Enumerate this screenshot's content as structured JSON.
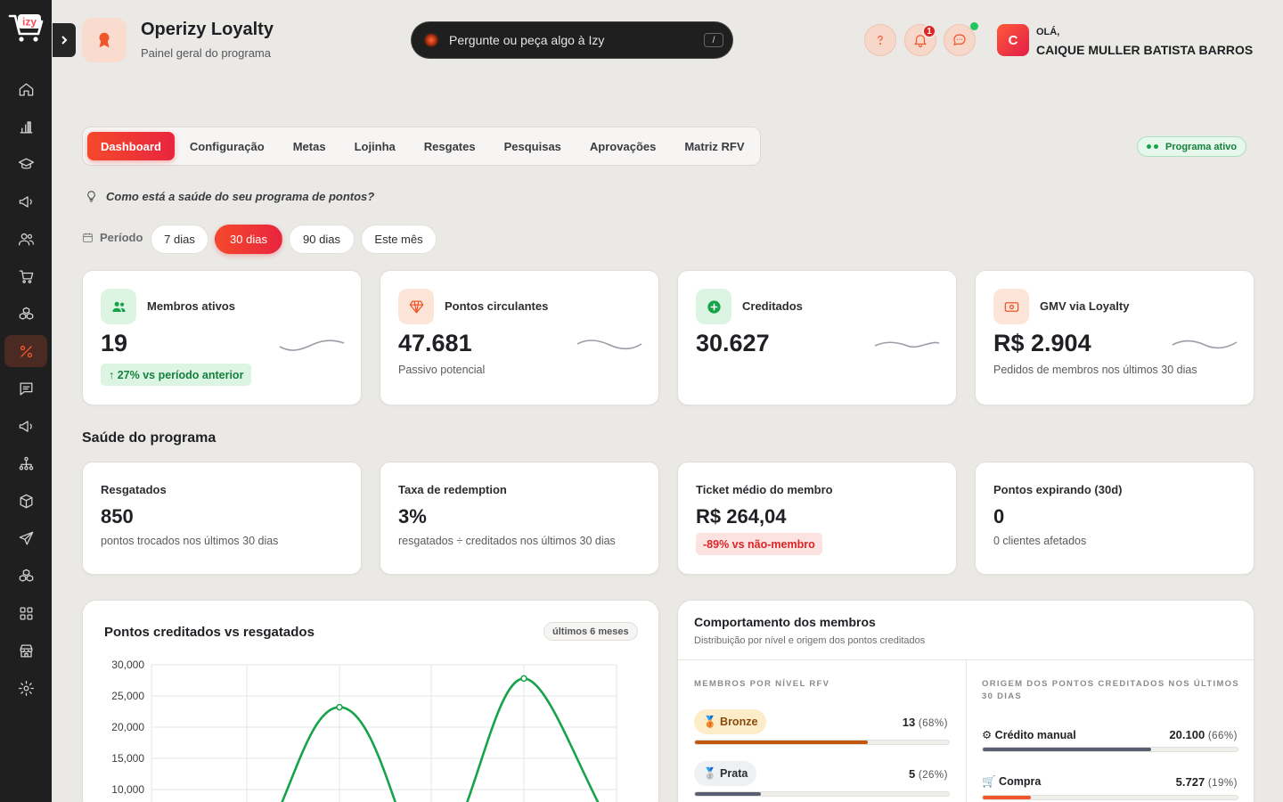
{
  "app": {
    "logo_text": "izy"
  },
  "sidebar": {
    "items": [
      {
        "name": "home"
      },
      {
        "name": "analytics"
      },
      {
        "name": "academy"
      },
      {
        "name": "campaigns"
      },
      {
        "name": "customers"
      },
      {
        "name": "store"
      },
      {
        "name": "integrations"
      },
      {
        "name": "loyalty",
        "active": true
      },
      {
        "name": "messages"
      },
      {
        "name": "announcements"
      },
      {
        "name": "network"
      },
      {
        "name": "products"
      },
      {
        "name": "send"
      },
      {
        "name": "modules"
      },
      {
        "name": "apps"
      },
      {
        "name": "stores"
      },
      {
        "name": "settings"
      }
    ]
  },
  "header": {
    "title": "Operizy Loyalty",
    "subtitle": "Painel geral do programa",
    "search_placeholder": "Pergunte ou peça algo à Izy",
    "search_shortcut": "/",
    "notifications_count": "1",
    "greeting": "OLÁ,",
    "user_name": "CAIQUE MULLER BATISTA BARROS",
    "user_initial": "C"
  },
  "tabs": [
    "Dashboard",
    "Configuração",
    "Metas",
    "Lojinha",
    "Resgates",
    "Pesquisas",
    "Aprovações",
    "Matriz RFV"
  ],
  "active_tab": "Dashboard",
  "status_badge": "Programa ativo",
  "question": "Como está a saúde do seu programa de pontos?",
  "period": {
    "label": "Período",
    "options": [
      "7 dias",
      "30 dias",
      "90 dias",
      "Este mês"
    ],
    "selected": "30 dias"
  },
  "kpis": [
    {
      "title": "Membros ativos",
      "value": "19",
      "delta": "↑ 27% vs período anterior",
      "icon": "members-icon",
      "color": "#16a34a"
    },
    {
      "title": "Pontos circulantes",
      "value": "47.681",
      "sub": "Passivo potencial",
      "icon": "diamond-icon",
      "color": "#f0562b"
    },
    {
      "title": "Creditados",
      "value": "30.627",
      "icon": "plus-circle-icon",
      "color": "#16a34a"
    },
    {
      "title": "GMV via Loyalty",
      "value": "R$ 2.904",
      "sub": "Pedidos de membros nos últimos 30 dias",
      "icon": "cash-icon",
      "color": "#f0562b"
    }
  ],
  "health": {
    "title": "Saúde do programa",
    "cards": [
      {
        "title": "Resgatados",
        "value": "850",
        "sub": "pontos trocados nos últimos 30 dias"
      },
      {
        "title": "Taxa de redemption",
        "value": "3%",
        "sub": "resgatados ÷ creditados nos últimos 30 dias"
      },
      {
        "title": "Ticket médio do membro",
        "value": "R$ 264,04",
        "badge": "-89% vs não-membro"
      },
      {
        "title": "Pontos expirando (30d)",
        "value": "0",
        "sub": "0 clientes afetados"
      }
    ]
  },
  "chart_card": {
    "title": "Pontos creditados vs resgatados",
    "tag": "últimos 6 meses"
  },
  "chart_data": {
    "type": "line",
    "title": "Pontos creditados vs resgatados",
    "y_ticks": [
      "30,000",
      "25,000",
      "20,000",
      "15,000",
      "10,000"
    ],
    "ylim": [
      10000,
      30000
    ],
    "series": [
      {
        "color": "#16a34a",
        "peaks": [
          23200,
          27800
        ]
      }
    ],
    "grid": true
  },
  "behavior": {
    "title": "Comportamento dos membros",
    "subtitle": "Distribuição por nível e origem dos pontos creditados",
    "levels_header": "MEMBROS POR NÍVEL RFV",
    "origin_header": "ORIGEM DOS PONTOS CREDITADOS NOS ÚLTIMOS 30 DIAS",
    "levels": [
      {
        "label": "🥉 Bronze",
        "count": "13",
        "pct": "(68%)",
        "fill": 0.68,
        "color": "#c2560c",
        "bg": "#fdecc8",
        "fg": "#8a4a0b"
      },
      {
        "label": "🥈 Prata",
        "count": "5",
        "pct": "(26%)",
        "fill": 0.26,
        "color": "#5a6072",
        "bg": "#eef0f3",
        "fg": "#2c2d31"
      }
    ],
    "origins": [
      {
        "label": "⚙ Crédito manual",
        "value": "20.100",
        "pct": "(66%)",
        "fill": 0.66,
        "color": "#5a6072"
      },
      {
        "label": "🛒 Compra",
        "value": "5.727",
        "pct": "(19%)",
        "fill": 0.19,
        "color": "#f0562b"
      }
    ]
  }
}
